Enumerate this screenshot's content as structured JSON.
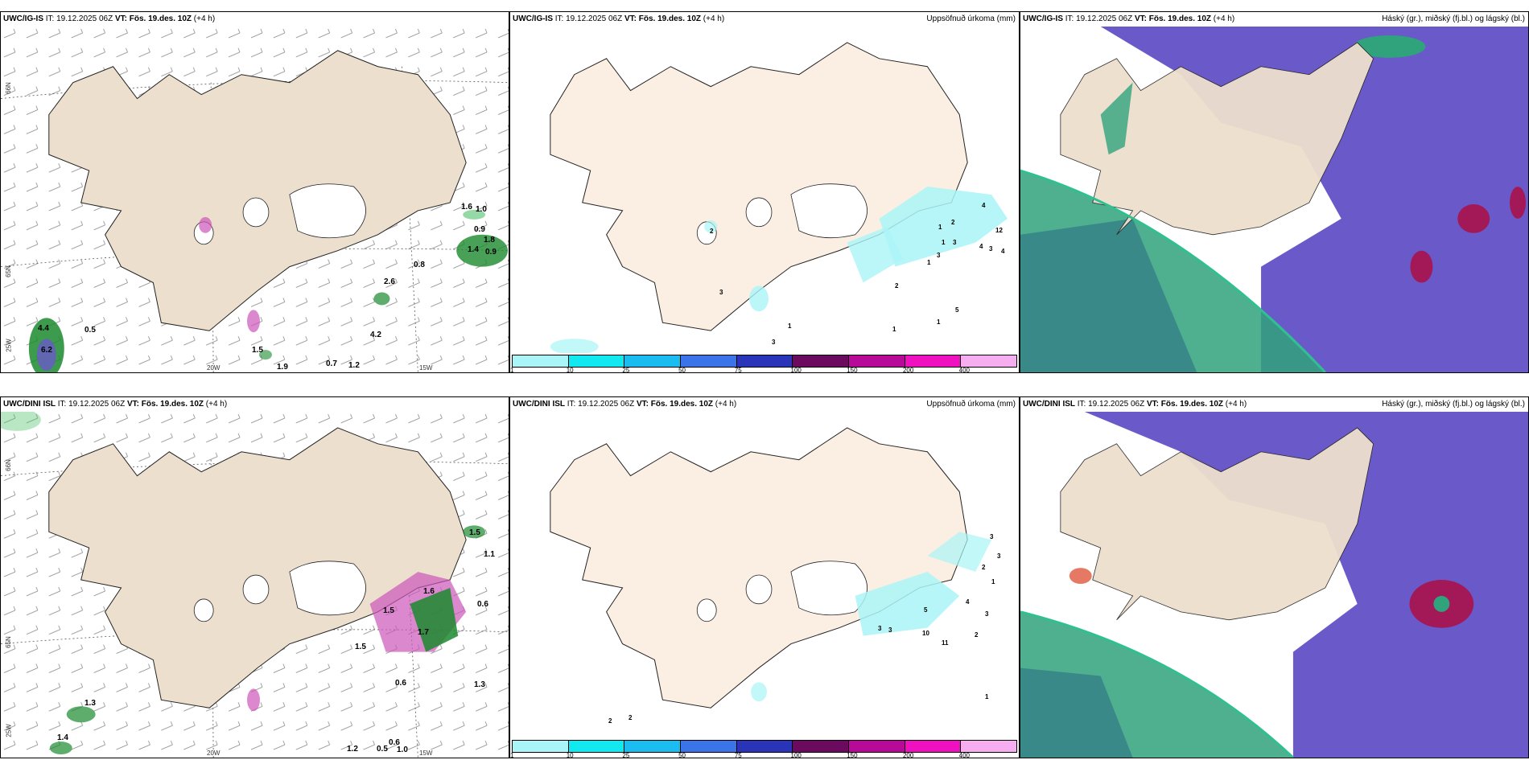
{
  "rows": [
    {
      "model": "UWC/IG-IS",
      "it_label": "IT:",
      "it_value": "19.12.2025 06Z",
      "vt_label": "VT:",
      "vt_value": "Fös. 19.des. 10Z",
      "lead": "(+4 h)",
      "wind_values": [
        "1.6",
        "1.0",
        "4.4",
        "0.5",
        "6.2",
        "0.8",
        "2.6",
        "1.8",
        "0.9",
        "1.4",
        "1.5",
        "1.9",
        "0.7",
        "1.2",
        "4.2",
        "0.9"
      ],
      "precip_values": [
        "4",
        "12",
        "2",
        "4",
        "3",
        "4",
        "1",
        "1",
        "3",
        "3",
        "1",
        "2",
        "1",
        "5",
        "1",
        "3",
        "1",
        "2",
        "3"
      ]
    },
    {
      "model": "UWC/DINI ISL",
      "it_label": "IT:",
      "it_value": "19.12.2025 06Z",
      "vt_label": "VT:",
      "vt_value": "Fös. 19.des. 10Z",
      "lead": "(+4 h)",
      "wind_values": [
        "1.5",
        "1.1",
        "0.6",
        "1.6",
        "1.7",
        "1.3",
        "0.6",
        "1.3",
        "1.4",
        "1.2",
        "0.5",
        "0.6",
        "1.0",
        "1.5",
        "1.5"
      ],
      "precip_values": [
        "3",
        "3",
        "2",
        "1",
        "4",
        "3",
        "5",
        "10",
        "11",
        "2",
        "1",
        "2",
        "2",
        "3",
        "3"
      ]
    }
  ],
  "precip_title": "Uppsöfnuð úrkoma (mm)",
  "cloud_title": "Háský (gr.), miðský (fj.bl.) og lágský (bl.)",
  "axis_labels": {
    "lon_20w": "20W",
    "lon_15w": "15W",
    "lat_65n": "65N",
    "lat_66n": "66N",
    "lon_25w": "25W"
  },
  "legend": {
    "ticks": [
      "1",
      "10",
      "25",
      "50",
      "75",
      "100",
      "150",
      "200",
      "400"
    ],
    "colors": [
      "#aaf5f7",
      "#11e8f0",
      "#1bbcf0",
      "#3a74e8",
      "#2a34b8",
      "#6b0a5e",
      "#b80a98",
      "#ef10c0",
      "#f6aef0"
    ]
  },
  "colors": {
    "land": "#eddfcd",
    "land_light": "#fbefe3",
    "cloud_high": "#6a59c9",
    "cloud_mid": "#30a27c",
    "cloud_low": "#a31857",
    "precip_green": "#1b8a2e"
  }
}
